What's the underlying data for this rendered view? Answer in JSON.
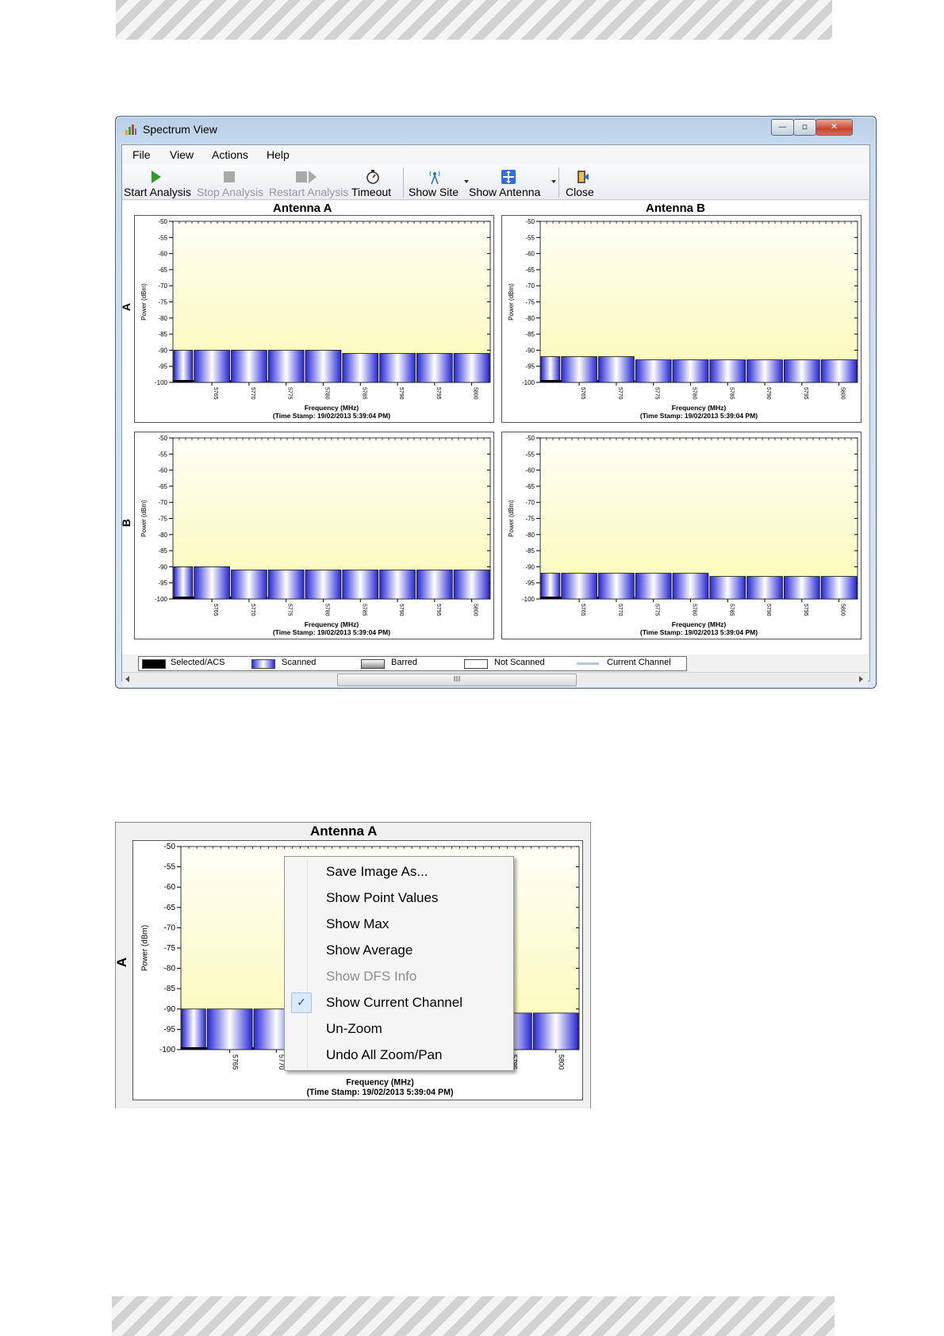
{
  "window": {
    "title": "Spectrum View",
    "caption_buttons": {
      "minimize": "—",
      "maximize": "▫",
      "close": "✕"
    },
    "menu": [
      "File",
      "View",
      "Actions",
      "Help"
    ],
    "toolbar": [
      {
        "label": "Start Analysis",
        "enabled": true,
        "icon": "play-icon"
      },
      {
        "label": "Stop Analysis",
        "enabled": false,
        "icon": "stop-icon"
      },
      {
        "label": "Restart Analysis",
        "enabled": false,
        "icon": "restart-icon"
      },
      {
        "label": "Timeout",
        "enabled": true,
        "icon": "stopwatch-icon"
      },
      {
        "label": "Show Site",
        "enabled": true,
        "icon": "antenna-site-icon",
        "dropdown": true
      },
      {
        "label": "Show Antenna",
        "enabled": true,
        "icon": "move-antenna-icon",
        "dropdown": true
      },
      {
        "label": "Close",
        "enabled": true,
        "icon": "exit-door-icon"
      }
    ],
    "column_headers": [
      "Antenna A",
      "Antenna B"
    ],
    "row_headers": [
      "A",
      "B"
    ],
    "legend": [
      {
        "label": "Selected/ACS",
        "color": "#000000"
      },
      {
        "label": "Scanned",
        "color": "#2b2be0"
      },
      {
        "label": "Barred",
        "color": "#9a9a9a"
      },
      {
        "label": "Not Scanned",
        "color": "#ffffff"
      },
      {
        "label": "Current Channel",
        "color": "#b8c8dc"
      }
    ],
    "scrollbar_grip": "III"
  },
  "chart_data": [
    {
      "type": "bar",
      "panel": "A / Antenna A",
      "categories": [
        "5765",
        "5770",
        "5775",
        "5780",
        "5785",
        "5790",
        "5795",
        "5800"
      ],
      "values": [
        -90,
        -90,
        -90,
        -90,
        -91,
        -91,
        -91,
        -91
      ],
      "first_bar_value": -90,
      "ylim": [
        -100,
        -50
      ],
      "yticks": [
        -50,
        -55,
        -60,
        -65,
        -70,
        -75,
        -80,
        -85,
        -90,
        -95,
        -100
      ],
      "ylabel": "Power (dBm)",
      "xlabel": "Frequency (MHz)",
      "timestamp": "(Time Stamp: 19/02/2013 5:39:04 PM)"
    },
    {
      "type": "bar",
      "panel": "A / Antenna B",
      "categories": [
        "5765",
        "5770",
        "5775",
        "5780",
        "5785",
        "5790",
        "5795",
        "5800"
      ],
      "values": [
        -92,
        -92,
        -93,
        -93,
        -93,
        -93,
        -93,
        -93
      ],
      "first_bar_value": -92,
      "ylim": [
        -100,
        -50
      ],
      "yticks": [
        -50,
        -55,
        -60,
        -65,
        -70,
        -75,
        -80,
        -85,
        -90,
        -95,
        -100
      ],
      "ylabel": "Power (dBm)",
      "xlabel": "Frequency (MHz)",
      "timestamp": "(Time Stamp: 19/02/2013 5:39:04 PM)"
    },
    {
      "type": "bar",
      "panel": "B / Antenna A",
      "categories": [
        "5765",
        "5770",
        "5775",
        "5780",
        "5785",
        "5790",
        "5795",
        "5800"
      ],
      "values": [
        -90,
        -91,
        -91,
        -91,
        -91,
        -91,
        -91,
        -91
      ],
      "first_bar_value": -90,
      "ylim": [
        -100,
        -50
      ],
      "yticks": [
        -50,
        -55,
        -60,
        -65,
        -70,
        -75,
        -80,
        -85,
        -90,
        -95,
        -100
      ],
      "ylabel": "Power (dBm)",
      "xlabel": "Frequency (MHz)",
      "timestamp": "(Time Stamp: 19/02/2013 5:39:04 PM)"
    },
    {
      "type": "bar",
      "panel": "B / Antenna B",
      "categories": [
        "5765",
        "5770",
        "5775",
        "5780",
        "5785",
        "5790",
        "5795",
        "5800"
      ],
      "values": [
        -92,
        -92,
        -92,
        -92,
        -93,
        -93,
        -93,
        -93
      ],
      "first_bar_value": -92,
      "ylim": [
        -100,
        -50
      ],
      "yticks": [
        -50,
        -55,
        -60,
        -65,
        -70,
        -75,
        -80,
        -85,
        -90,
        -95,
        -100
      ],
      "ylabel": "Power (dBm)",
      "xlabel": "Frequency (MHz)",
      "timestamp": "(Time Stamp: 19/02/2013 5:39:04 PM)"
    },
    {
      "type": "bar",
      "panel": "Zoomed A / Antenna A",
      "categories": [
        "5765",
        "5770",
        "5775",
        "5780",
        "5785",
        "5790",
        "5795",
        "5800"
      ],
      "values": [
        -90,
        -90,
        -90,
        -90,
        -91,
        -91,
        -91,
        -91
      ],
      "first_bar_value": -90,
      "ylim": [
        -100,
        -50
      ],
      "yticks": [
        -50,
        -55,
        -60,
        -65,
        -70,
        -75,
        -80,
        -85,
        -90,
        -95,
        -100
      ],
      "ylabel": "Power (dBm)",
      "xlabel": "Frequency (MHz)",
      "timestamp": "(Time Stamp: 19/02/2013 5:39:04 PM)"
    }
  ],
  "zoom_panel": {
    "column_header": "Antenna A",
    "row_header": "A"
  },
  "context_menu": [
    {
      "label": "Save Image As...",
      "enabled": true,
      "checked": false
    },
    {
      "label": "Show Point Values",
      "enabled": true,
      "checked": false
    },
    {
      "label": "Show Max",
      "enabled": true,
      "checked": false
    },
    {
      "label": "Show Average",
      "enabled": true,
      "checked": false
    },
    {
      "label": "Show DFS Info",
      "enabled": false,
      "checked": false
    },
    {
      "label": "Show Current Channel",
      "enabled": true,
      "checked": true
    },
    {
      "label": "Un-Zoom",
      "enabled": true,
      "checked": false
    },
    {
      "label": "Undo All Zoom/Pan",
      "enabled": true,
      "checked": false
    }
  ],
  "colors": {
    "plot_top": "#fffff7",
    "plot_bottom": "#fafab4",
    "bar_edge": "#2626d8",
    "bar_center": "#ffffff"
  }
}
